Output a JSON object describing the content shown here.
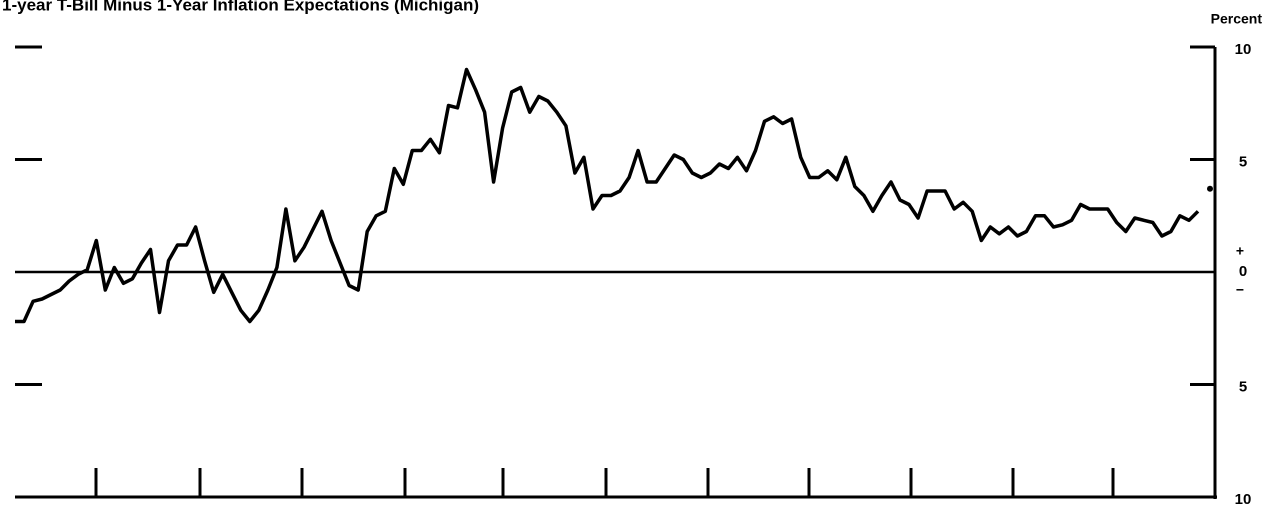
{
  "chart_data": {
    "type": "line",
    "title": "1-year T-Bill Minus 1-Year Inflation Expectations (Michigan)",
    "y_axis_label": "Percent",
    "sign_labels": [
      "+",
      "−"
    ],
    "ylim": [
      -10,
      10
    ],
    "yticks": [
      10,
      5,
      0,
      {
        "value": -5,
        "label": "5"
      },
      {
        "value": -10,
        "label": "10"
      }
    ],
    "color": "#000000",
    "values": [
      -2.2,
      -2.2,
      -1.3,
      -1.2,
      -1.0,
      -0.8,
      -0.4,
      -0.1,
      0.1,
      1.4,
      -0.8,
      0.2,
      -0.5,
      -0.3,
      0.4,
      1.0,
      -1.8,
      0.5,
      1.2,
      1.2,
      2.0,
      0.5,
      -0.9,
      -0.1,
      -0.9,
      -1.7,
      -2.2,
      -1.7,
      -0.8,
      0.2,
      2.8,
      0.5,
      1.1,
      1.9,
      2.7,
      1.4,
      0.4,
      -0.6,
      -0.8,
      1.8,
      2.5,
      2.7,
      4.6,
      3.9,
      5.4,
      5.4,
      5.9,
      5.3,
      7.4,
      7.3,
      9.0,
      8.1,
      7.1,
      4.0,
      6.4,
      8.0,
      8.2,
      7.1,
      7.8,
      7.6,
      7.1,
      6.5,
      4.4,
      5.1,
      2.8,
      3.4,
      3.4,
      3.6,
      4.2,
      5.4,
      4.0,
      4.0,
      4.6,
      5.2,
      5.0,
      4.4,
      4.2,
      4.4,
      4.8,
      4.6,
      5.1,
      4.5,
      5.4,
      6.7,
      6.9,
      6.6,
      6.8,
      5.1,
      4.2,
      4.2,
      4.5,
      4.1,
      5.1,
      3.8,
      3.4,
      2.7,
      3.4,
      4.0,
      3.2,
      3.0,
      2.4,
      3.6,
      3.6,
      3.6,
      2.8,
      3.1,
      2.7,
      1.4,
      2.0,
      1.7,
      2.0,
      1.6,
      1.8,
      2.5,
      2.5,
      2.0,
      2.1,
      2.3,
      3.0,
      2.8,
      2.8,
      2.8,
      2.2,
      1.8,
      2.4,
      2.3,
      2.2,
      1.6,
      1.8,
      2.5,
      2.3,
      2.7
    ],
    "point_value": 3.7
  }
}
